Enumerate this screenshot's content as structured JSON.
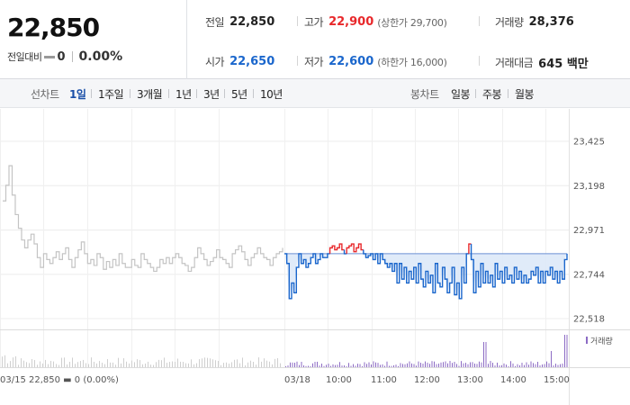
{
  "summary": {
    "price": "22,850",
    "change_label": "전일대비",
    "change_value": "0",
    "change_pct": "0.00%"
  },
  "info": {
    "prev_close": {
      "label": "전일",
      "value": "22,850"
    },
    "high": {
      "label": "고가",
      "value": "22,900",
      "sub": "(상한가 29,700)"
    },
    "volume": {
      "label": "거래량",
      "value": "28,376"
    },
    "open": {
      "label": "시가",
      "value": "22,650"
    },
    "low": {
      "label": "저가",
      "value": "22,600",
      "sub": "(하한가 16,000)"
    },
    "amount": {
      "label": "거래대금",
      "value": "645 백만"
    }
  },
  "period_bar": {
    "line_label": "선차트",
    "line_periods": [
      "1일",
      "1주일",
      "3개월",
      "1년",
      "3년",
      "5년",
      "10년"
    ],
    "active_period": "1일",
    "candle_label": "봉차트",
    "candle_periods": [
      "일봉",
      "주봉",
      "월봉"
    ]
  },
  "colors": {
    "up": "#e8282b",
    "down": "#1a66cc",
    "prev_day": "#c4c4c4",
    "volume_today": "#8c6bc4"
  },
  "chart_data": {
    "type": "line",
    "reference_price": 22850,
    "y_ticks": [
      23425,
      23198,
      22971,
      22744,
      22518
    ],
    "y_tick_labels": [
      "23,425",
      "23,198",
      "22,971",
      "22,744",
      "22,518"
    ],
    "ylim": [
      22470,
      23480
    ],
    "x_labels": [
      "03/15 22,850 ▬ 0 (0.00%)",
      "03/18",
      "10:00",
      "11:00",
      "12:00",
      "13:00",
      "14:00",
      "15:00"
    ],
    "volume_legend": "거래량",
    "series": [
      {
        "values": [
          23120,
          23200,
          23300,
          23150,
          23050,
          22980,
          22920,
          22880,
          22920,
          22950,
          22900,
          22830,
          22780,
          22850,
          22820,
          22800,
          22830,
          22860,
          22820,
          22850,
          22880,
          22820,
          22780,
          22830,
          22870,
          22910,
          22850,
          22800,
          22820,
          22790,
          22850,
          22830,
          22770,
          22810,
          22780,
          22820,
          22790,
          22850,
          22800,
          22780,
          22780,
          22820,
          22790,
          22780,
          22850,
          22820,
          22800,
          22780,
          22760,
          22780,
          22820,
          22800,
          22830,
          22800,
          22830,
          22850,
          22830,
          22800,
          22790,
          22760,
          22780,
          22830,
          22880,
          22850,
          22820,
          22790,
          22810,
          22830,
          22870,
          22830,
          22820,
          22800,
          22780,
          22850,
          22870,
          22890,
          22860,
          22820,
          22790,
          22830,
          22850,
          22880,
          22850,
          22830,
          22820,
          22790,
          22830,
          22850,
          22860,
          22880
        ]
      },
      {
        "values": [
          22850,
          22800,
          22620,
          22700,
          22650,
          22780,
          22850,
          22800,
          22820,
          22780,
          22800,
          22830,
          22850,
          22800,
          22820,
          22850,
          22830,
          22830,
          22850,
          22880,
          22890,
          22870,
          22880,
          22900,
          22870,
          22850,
          22880,
          22890,
          22900,
          22860,
          22880,
          22900,
          22870,
          22850,
          22830,
          22840,
          22850,
          22820,
          22850,
          22800,
          22850,
          22820,
          22800,
          22780,
          22800,
          22760,
          22800,
          22700,
          22800,
          22720,
          22780,
          22700,
          22760,
          22720,
          22780,
          22700,
          22800,
          22720,
          22680,
          22760,
          22700,
          22740,
          22650,
          22800,
          22700,
          22680,
          22780,
          22720,
          22650,
          22700,
          22780,
          22640,
          22700,
          22620,
          22780,
          22700,
          22850,
          22900,
          22820,
          22650,
          22760,
          22680,
          22800,
          22700,
          22760,
          22700,
          22740,
          22680,
          22800,
          22720,
          22760,
          22700,
          22780,
          22720,
          22740,
          22700,
          22780,
          22720,
          22760,
          22700,
          22740,
          22700,
          22720,
          22760,
          22740,
          22780,
          22700,
          22760,
          22700,
          22760,
          22740,
          22780,
          22720,
          22760,
          22700,
          22760,
          22720,
          22820,
          22850
        ]
      }
    ]
  }
}
